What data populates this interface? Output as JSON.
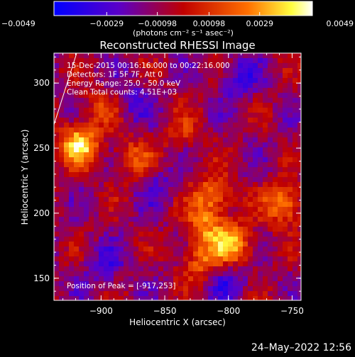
{
  "chart_data": {
    "type": "heatmap",
    "title": "Reconstructed RHESSI Image",
    "xlabel": "Heliocentric X (arcsec)",
    "ylabel": "Heliocentric Y (arcsec)",
    "xlim": [
      -937,
      -743
    ],
    "ylim": [
      133,
      323
    ],
    "x_ticks": [
      -900,
      -850,
      -800,
      -750
    ],
    "x_tick_labels": [
      "−900",
      "−850",
      "−800",
      "−750"
    ],
    "y_ticks": [
      150,
      200,
      250,
      300
    ],
    "y_tick_labels": [
      "150",
      "200",
      "250",
      "300"
    ],
    "colorbar": {
      "min": -0.0049,
      "max": 0.0049,
      "tick_values": [
        -0.0049,
        -0.0029,
        -0.00098,
        0.00098,
        0.0029,
        0.0049
      ],
      "tick_labels": [
        "−0.0049",
        "−0.0029",
        "−0.00098",
        "0.00098",
        "0.0029",
        "0.0049"
      ],
      "unit_label": "(photons cm⁻² s⁻¹ asec⁻²)",
      "colormap": "blue-purple-red-yellow-white"
    },
    "info_lines": [
      "15-Dec-2015 00:16:16.000 to 00:22:16.000",
      "Detectors: 1F 5F 7F, Att 0",
      "Energy Range: 25.0 - 50.0 keV",
      "Clean     Total counts: 4.51E+03"
    ],
    "peak_label": "Position of Peak = [-917,253]",
    "peak": {
      "x": -917,
      "y": 253
    },
    "bright_sources": [
      {
        "x": -917,
        "y": 253,
        "intensity": 0.0049
      },
      {
        "x": -875,
        "y": 242,
        "intensity": 0.0025
      },
      {
        "x": -835,
        "y": 262,
        "intensity": 0.0015
      },
      {
        "x": -812,
        "y": 214,
        "intensity": 0.0034
      },
      {
        "x": -818,
        "y": 190,
        "intensity": 0.003
      },
      {
        "x": -796,
        "y": 176,
        "intensity": 0.0042
      },
      {
        "x": -756,
        "y": 207,
        "intensity": 0.004
      },
      {
        "x": -822,
        "y": 163,
        "intensity": 0.0028
      },
      {
        "x": -900,
        "y": 282,
        "intensity": 0.0018
      }
    ],
    "dim_sources": [
      {
        "x": -792,
        "y": 303,
        "intensity": -0.0022
      },
      {
        "x": -876,
        "y": 286,
        "intensity": -0.0016
      },
      {
        "x": -856,
        "y": 222,
        "intensity": -0.0014
      },
      {
        "x": -898,
        "y": 158,
        "intensity": -0.0018
      },
      {
        "x": -800,
        "y": 148,
        "intensity": -0.002
      }
    ]
  },
  "timestamp": "24–May–2022 12:56"
}
